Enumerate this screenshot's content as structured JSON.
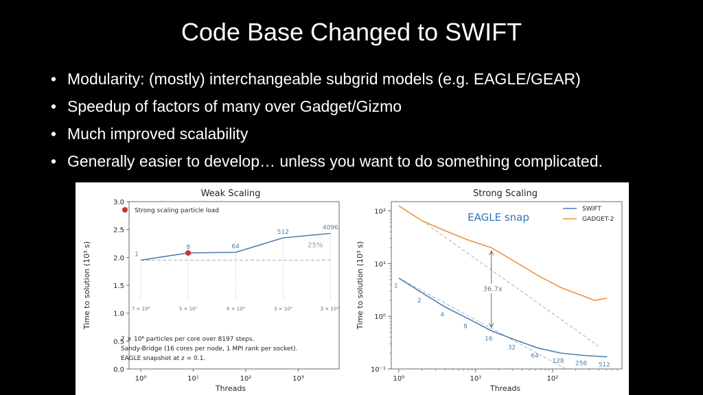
{
  "slide": {
    "title": "Code Base Changed to SWIFT",
    "bullets": [
      "Modularity: (mostly) interchangeable subgrid models (e.g. EAGLE/GEAR)",
      "Speedup of factors of many over Gadget/Gizmo",
      "Much improved scalability",
      "Generally easier to develop… unless you want to do something complicated."
    ]
  },
  "colors": {
    "swift": "#4a7fb5",
    "gadget": "#f0913a",
    "marker": "#c8322b",
    "ref": "#bbbbbb"
  },
  "chart_data": [
    {
      "type": "line",
      "title": "Weak Scaling",
      "xlabel": "Threads",
      "ylabel": "Time to solution (10³ s)",
      "xscale": "log",
      "xlim": [
        0.6,
        6000
      ],
      "ylim": [
        0.0,
        3.0
      ],
      "xtick_labels": [
        "10⁰",
        "10¹",
        "10²",
        "10³"
      ],
      "ytick_labels": [
        "0.0",
        "0.5",
        "1.0",
        "1.5",
        "2.0",
        "2.5",
        "3.0"
      ],
      "series": [
        {
          "x": [
            1,
            8,
            64,
            512,
            4096
          ],
          "values": [
            1.95,
            2.08,
            2.09,
            2.35,
            2.43
          ]
        }
      ],
      "point_labels": [
        "1",
        "8",
        "64",
        "512",
        "4096"
      ],
      "particle_labels": [
        "7 × 10⁶",
        "5 × 10⁷",
        "4 × 10⁸",
        "3 × 10⁹",
        "3 × 10¹⁰"
      ],
      "reference_line": {
        "y": 1.95,
        "annotation": "25%"
      },
      "highlight_point": {
        "x": 8,
        "y": 2.08
      },
      "legend": {
        "entries": [
          "Strong scaling particle load"
        ],
        "placement": "top-left"
      },
      "notes": [
        "7 × 10⁶ particles per core over 8197 steps.",
        "Sandy-Bridge (16 cores per node, 1 MPI rank per socket).",
        "EAGLE snapshot at z = 0.1."
      ]
    },
    {
      "type": "line",
      "title": "Strong Scaling",
      "xlabel": "Threads",
      "ylabel": "Time to solution (10³ s)",
      "xscale": "log",
      "yscale": "log",
      "xlim": [
        0.8,
        800
      ],
      "ylim": [
        0.1,
        150
      ],
      "xtick_labels": [
        "10⁰",
        "10¹",
        "10²"
      ],
      "ytick_labels": [
        "10⁻¹",
        "10⁰",
        "10¹",
        "10²"
      ],
      "annotation": "EAGLE snap",
      "speedup_label": "36.7x",
      "legend": {
        "entries": [
          "SWIFT",
          "GADGET-2"
        ],
        "placement": "top-right"
      },
      "series": [
        {
          "name": "SWIFT",
          "x": [
            1,
            2,
            4,
            8,
            16,
            32,
            64,
            128,
            256,
            512
          ],
          "values": [
            5.3,
            2.8,
            1.5,
            0.9,
            0.53,
            0.36,
            0.25,
            0.2,
            0.18,
            0.17
          ]
        },
        {
          "name": "GADGET-2",
          "x": [
            1,
            2,
            4,
            8,
            16,
            32,
            64,
            128,
            256,
            350,
            512
          ],
          "values": [
            125,
            65,
            42,
            28,
            20,
            11,
            6,
            3.5,
            2.4,
            2.0,
            2.2
          ]
        }
      ],
      "point_labels": [
        "1",
        "2",
        "4",
        "8",
        "16",
        "32",
        "64",
        "128",
        "256",
        "512"
      ],
      "ideal_lines": [
        {
          "x": [
            2,
            400
          ],
          "values": [
            65,
            0.27
          ]
        },
        {
          "x": [
            1,
            150
          ],
          "values": [
            5.3,
            0.1
          ]
        }
      ]
    }
  ]
}
